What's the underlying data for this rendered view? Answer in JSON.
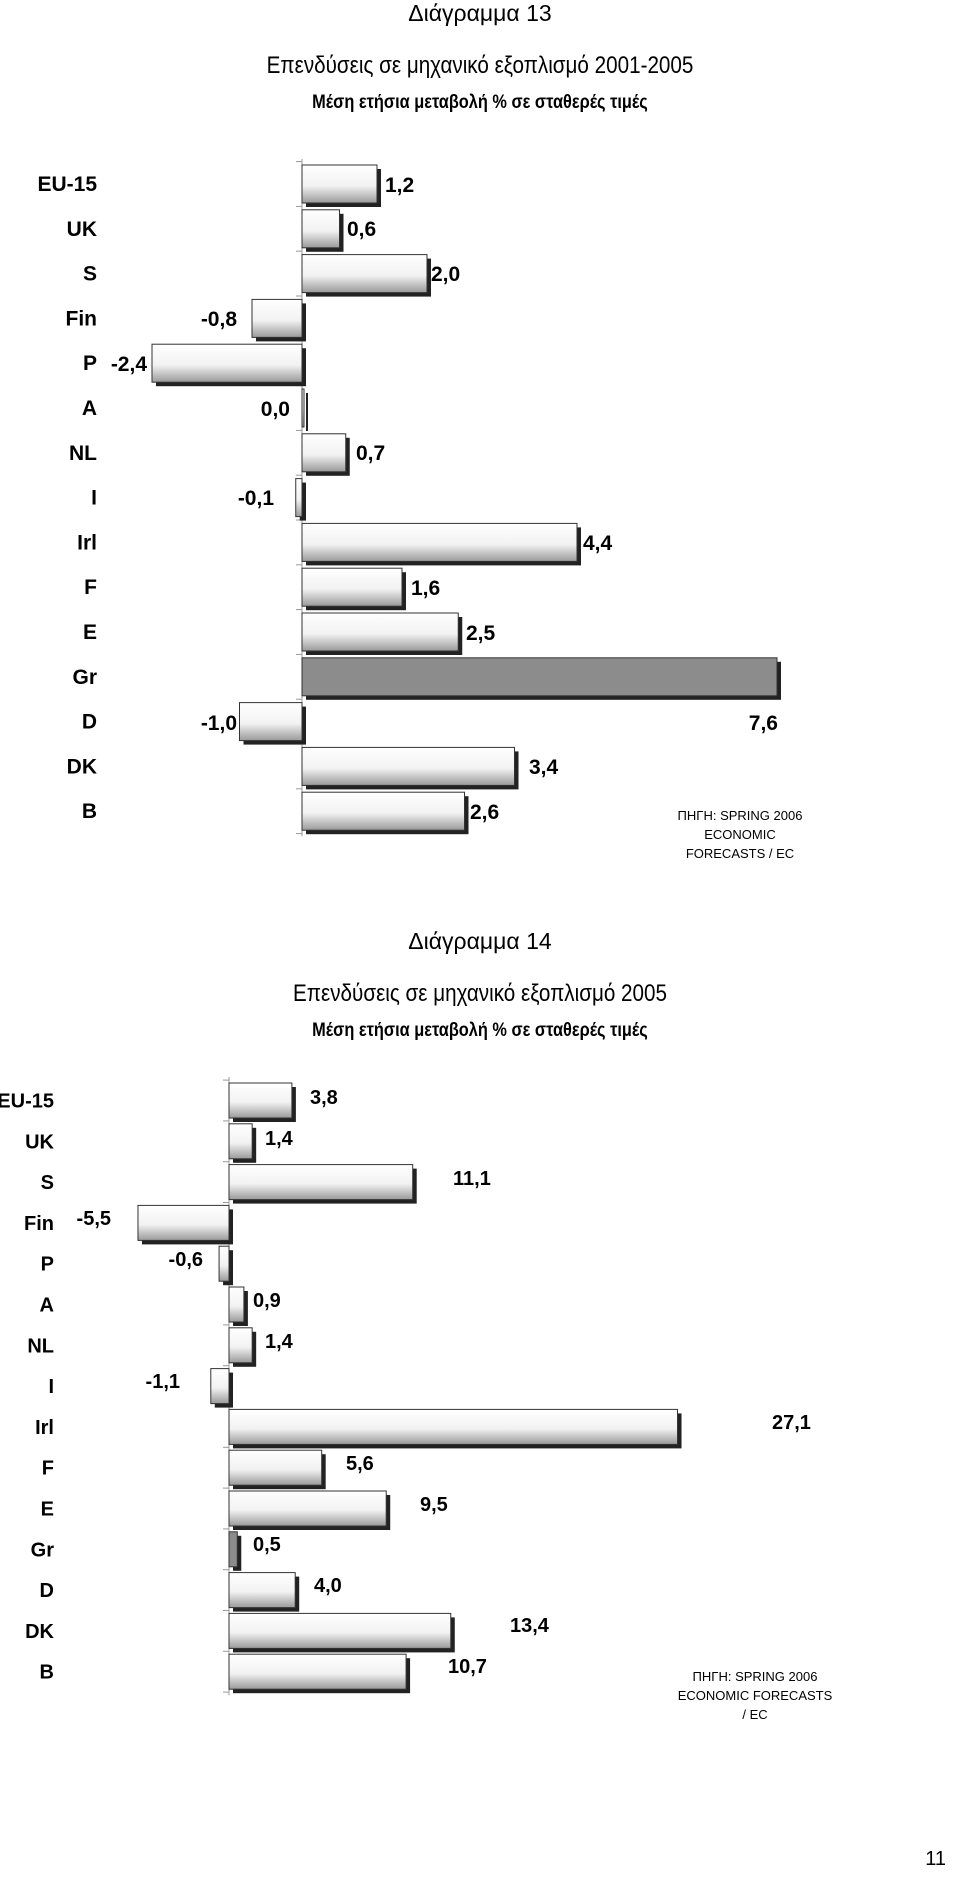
{
  "chart_data": [
    {
      "type": "bar",
      "orientation": "horizontal",
      "diagram_label": "Διάγραμμα 13",
      "title": "Επενδύσεις σε μηχανικό εξοπλισμό 2001-2005",
      "subtitle": "Μέση ετήσια μεταβολή % σε σταθερές τιμές",
      "categories": [
        "EU-15",
        "UK",
        "S",
        "Fin",
        "P",
        "A",
        "NL",
        "I",
        "Irl",
        "F",
        "E",
        "Gr",
        "D",
        "DK",
        "B"
      ],
      "values": [
        1.2,
        0.6,
        2.0,
        -0.8,
        -2.4,
        0.0,
        0.7,
        -0.1,
        4.4,
        1.6,
        2.5,
        7.6,
        -1.0,
        3.4,
        2.6
      ],
      "value_labels": [
        "1,2",
        "0,6",
        "2,0",
        "-0,8",
        "-2,4",
        "0,0",
        "0,7",
        "-0,1",
        "4,4",
        "1,6",
        "2,5",
        "7,6",
        "-1,0",
        "3,4",
        "2,6"
      ],
      "highlight_category": "Gr",
      "source_lines": [
        "ΠΗΓΗ: SPRING 2006",
        "ECONOMIC",
        "FORECASTS / EC"
      ]
    },
    {
      "type": "bar",
      "orientation": "horizontal",
      "diagram_label": "Διάγραμμα 14",
      "title": "Επενδύσεις σε μηχανικό εξοπλισμό 2005",
      "subtitle": "Μέση ετήσια μεταβολή % σε σταθερές τιμές",
      "categories": [
        "EU-15",
        "UK",
        "S",
        "Fin",
        "P",
        "A",
        "NL",
        "I",
        "Irl",
        "F",
        "E",
        "Gr",
        "D",
        "DK",
        "B"
      ],
      "values": [
        3.8,
        1.4,
        11.1,
        -5.5,
        -0.6,
        0.9,
        1.4,
        -1.1,
        27.1,
        5.6,
        9.5,
        0.5,
        4.0,
        13.4,
        10.7
      ],
      "value_labels": [
        "3,8",
        "1,4",
        "11,1",
        "-5,5",
        "-0,6",
        "0,9",
        "1,4",
        "-1,1",
        "27,1",
        "5,6",
        "9,5",
        "0,5",
        "4,0",
        "13,4",
        "10,7"
      ],
      "highlight_category": "Gr",
      "source_lines": [
        "ΠΗΓΗ: SPRING 2006",
        "ECONOMIC FORECASTS",
        "/ EC"
      ]
    }
  ],
  "page_number": "11",
  "colors": {
    "bar_fill_light": "#ffffff",
    "bar_fill_dark": "#9a9a9a",
    "highlight_fill": "#8c8c8c",
    "bar_shadow": "#222222",
    "axis": "#999999"
  }
}
